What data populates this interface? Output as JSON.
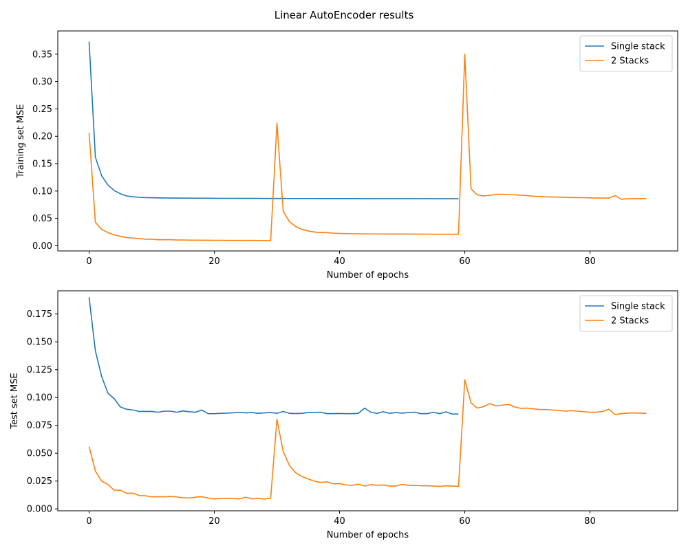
{
  "figure": {
    "title": "Linear AutoEncoder results"
  },
  "colors": {
    "single": "#1f77b4",
    "two": "#ff7f0e"
  },
  "chart_data": [
    {
      "type": "line",
      "xlabel": "Number of epochs",
      "ylabel": "Training set MSE",
      "xlim": [
        -5,
        94
      ],
      "ylim": [
        -0.0095,
        0.3925
      ],
      "xticks": [
        0,
        20,
        40,
        60,
        80
      ],
      "xtick_labels": [
        "0",
        "20",
        "40",
        "60",
        "80"
      ],
      "yticks": [
        0.0,
        0.05,
        0.1,
        0.15,
        0.2,
        0.25,
        0.3,
        0.35
      ],
      "ytick_labels": [
        "0.00",
        "0.05",
        "0.10",
        "0.15",
        "0.20",
        "0.25",
        "0.30",
        "0.35"
      ],
      "legend_position": "top-right",
      "series": [
        {
          "name": "Single stack",
          "color": "#1f77b4",
          "x_start": 0,
          "values": [
            0.373,
            0.162,
            0.128,
            0.111,
            0.101,
            0.095,
            0.091,
            0.0895,
            0.0885,
            0.088,
            0.0878,
            0.0875,
            0.0873,
            0.0872,
            0.0871,
            0.087,
            0.087,
            0.0869,
            0.0868,
            0.0868,
            0.0867,
            0.0866,
            0.0866,
            0.0866,
            0.0865,
            0.0865,
            0.0865,
            0.0866,
            0.0864,
            0.0864,
            0.0864,
            0.0864,
            0.0863,
            0.0863,
            0.0863,
            0.0863,
            0.0863,
            0.0862,
            0.0862,
            0.0862,
            0.0862,
            0.0862,
            0.0862,
            0.0862,
            0.0861,
            0.0861,
            0.0861,
            0.086,
            0.0861,
            0.086,
            0.086,
            0.086,
            0.086,
            0.0859,
            0.086,
            0.0859,
            0.0859,
            0.0859,
            0.0859,
            0.0859
          ]
        },
        {
          "name": "2 Stacks",
          "color": "#ff7f0e",
          "x_start": 0,
          "values": [
            0.206,
            0.043,
            0.03,
            0.024,
            0.02,
            0.017,
            0.015,
            0.014,
            0.013,
            0.012,
            0.012,
            0.011,
            0.011,
            0.011,
            0.0105,
            0.0105,
            0.0102,
            0.0102,
            0.0101,
            0.01,
            0.0099,
            0.0099,
            0.0098,
            0.0098,
            0.0098,
            0.0097,
            0.0097,
            0.0096,
            0.0096,
            0.0095,
            0.224,
            0.063,
            0.044,
            0.035,
            0.03,
            0.027,
            0.025,
            0.024,
            0.024,
            0.023,
            0.0225,
            0.0222,
            0.022,
            0.0218,
            0.0217,
            0.0216,
            0.0215,
            0.0215,
            0.0214,
            0.0214,
            0.0213,
            0.0213,
            0.0212,
            0.0212,
            0.0212,
            0.0211,
            0.0211,
            0.021,
            0.021,
            0.021,
            0.35,
            0.104,
            0.093,
            0.091,
            0.092,
            0.094,
            0.094,
            0.0935,
            0.093,
            0.0925,
            0.0915,
            0.0905,
            0.0898,
            0.0893,
            0.089,
            0.0887,
            0.0884,
            0.0881,
            0.0879,
            0.0877,
            0.0875,
            0.0873,
            0.0872,
            0.0871,
            0.0915,
            0.085,
            0.0858,
            0.086,
            0.086,
            0.086
          ]
        }
      ]
    },
    {
      "type": "line",
      "xlabel": "Number of epochs",
      "ylabel": "Test set MSE",
      "xlim": [
        -5,
        94
      ],
      "ylim": [
        -0.0017,
        0.1958
      ],
      "xticks": [
        0,
        20,
        40,
        60,
        80
      ],
      "xtick_labels": [
        "0",
        "20",
        "40",
        "60",
        "80"
      ],
      "yticks": [
        0.0,
        0.025,
        0.05,
        0.075,
        0.1,
        0.125,
        0.15,
        0.175
      ],
      "ytick_labels": [
        "0.000",
        "0.025",
        "0.050",
        "0.075",
        "0.100",
        "0.125",
        "0.150",
        "0.175"
      ],
      "legend_position": "top-right",
      "series": [
        {
          "name": "Single stack",
          "color": "#1f77b4",
          "x_start": 0,
          "values": [
            0.19,
            0.142,
            0.119,
            0.104,
            0.099,
            0.0915,
            0.0895,
            0.0888,
            0.0875,
            0.0875,
            0.0875,
            0.0868,
            0.0878,
            0.0878,
            0.0868,
            0.088,
            0.0872,
            0.0868,
            0.0888,
            0.0855,
            0.0855,
            0.0858,
            0.086,
            0.0863,
            0.0868,
            0.0862,
            0.0865,
            0.0858,
            0.0862,
            0.0866,
            0.0858,
            0.0875,
            0.0858,
            0.0856,
            0.0858,
            0.0865,
            0.0866,
            0.0868,
            0.0855,
            0.0856,
            0.0857,
            0.0855,
            0.0855,
            0.0858,
            0.0905,
            0.0868,
            0.0858,
            0.0872,
            0.0858,
            0.0865,
            0.086,
            0.0865,
            0.0868,
            0.0855,
            0.0855,
            0.0868,
            0.0855,
            0.0872,
            0.0852,
            0.0852
          ]
        },
        {
          "name": "2 Stacks",
          "color": "#ff7f0e",
          "x_start": 0,
          "values": [
            0.056,
            0.034,
            0.025,
            0.022,
            0.0168,
            0.0168,
            0.014,
            0.0142,
            0.012,
            0.0118,
            0.0108,
            0.011,
            0.0108,
            0.0112,
            0.0108,
            0.01,
            0.0098,
            0.0105,
            0.011,
            0.0098,
            0.009,
            0.0093,
            0.0095,
            0.0093,
            0.009,
            0.0105,
            0.009,
            0.0095,
            0.0088,
            0.0098,
            0.0805,
            0.0515,
            0.039,
            0.0325,
            0.029,
            0.027,
            0.0248,
            0.0238,
            0.0243,
            0.0225,
            0.0228,
            0.0215,
            0.0212,
            0.0222,
            0.0205,
            0.0218,
            0.0212,
            0.0215,
            0.0205,
            0.0205,
            0.022,
            0.0212,
            0.0212,
            0.0208,
            0.0208,
            0.0205,
            0.0202,
            0.0208,
            0.0205,
            0.0202,
            0.116,
            0.0952,
            0.0905,
            0.0918,
            0.0945,
            0.0925,
            0.0932,
            0.0938,
            0.0915,
            0.0902,
            0.0905,
            0.0898,
            0.0892,
            0.0892,
            0.0888,
            0.0885,
            0.0878,
            0.0882,
            0.0878,
            0.0872,
            0.0868,
            0.0868,
            0.0875,
            0.0895,
            0.0848,
            0.0855,
            0.086,
            0.0862,
            0.086,
            0.0858
          ]
        }
      ]
    }
  ]
}
